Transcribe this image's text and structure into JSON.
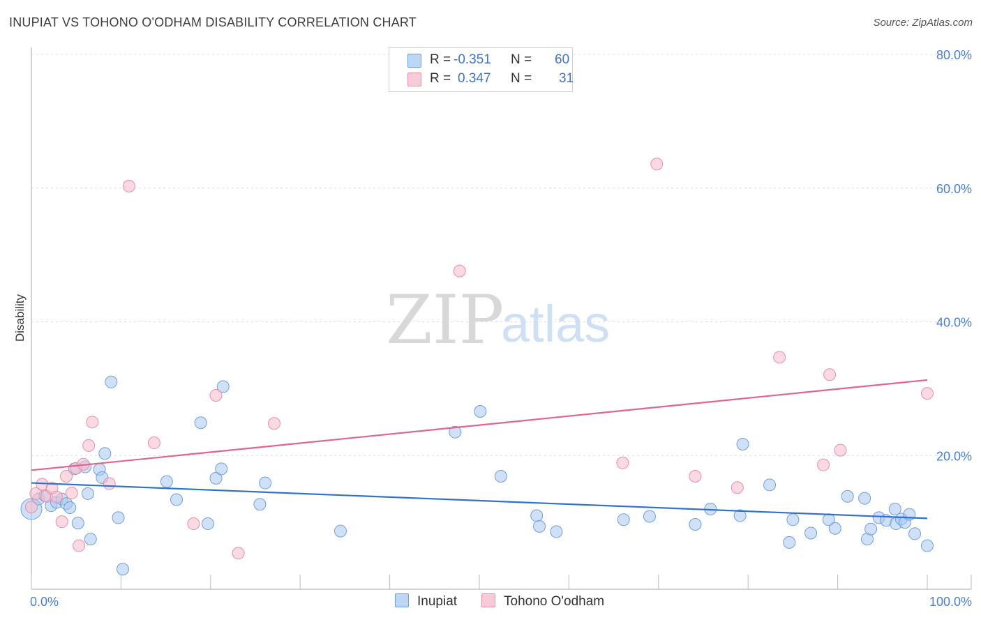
{
  "title": "INUPIAT VS TOHONO O'ODHAM DISABILITY CORRELATION CHART",
  "source": "Source: ZipAtlas.com",
  "watermark": {
    "zip": "ZIP",
    "atlas": "atlas"
  },
  "legend": {
    "r_label": "R =",
    "n_label": "N =",
    "rows": [
      {
        "name": "Inupiat",
        "r": "-0.351",
        "n": "60"
      },
      {
        "name": "Tohono O'odham",
        "r": "0.347",
        "n": "31"
      }
    ]
  },
  "colors": {
    "inupiat_fill": "#a9c8f0",
    "inupiat_stroke": "#6f9fd8",
    "inupiat_line": "#2f72cc",
    "tohono_fill": "#f6bccb",
    "tohono_stroke": "#e78fa9",
    "tohono_line": "#e0648f",
    "axis_text": "#4a7fd0",
    "grid": "#dcdcdc"
  },
  "chart_data": {
    "type": "scatter",
    "title": "INUPIAT VS TOHONO O'ODHAM DISABILITY CORRELATION CHART",
    "xlabel": "",
    "ylabel": "Disability",
    "xlim": [
      0,
      100
    ],
    "ylim": [
      0,
      80
    ],
    "x_tick_labels": [
      "0.0%",
      "100.0%"
    ],
    "y_ticks": [
      20,
      40,
      60,
      80
    ],
    "y_tick_labels": [
      "20.0%",
      "40.0%",
      "60.0%",
      "80.0%"
    ],
    "grid": true,
    "series": [
      {
        "name": "Inupiat",
        "r": -0.351,
        "n": 60,
        "trend": {
          "x": [
            0,
            100
          ],
          "y": [
            15.9,
            10.6
          ]
        },
        "points": [
          {
            "x": 0.0,
            "y": 12.0,
            "big": true
          },
          {
            "x": 0.8,
            "y": 13.5
          },
          {
            "x": 1.5,
            "y": 14.0
          },
          {
            "x": 2.2,
            "y": 12.5
          },
          {
            "x": 2.8,
            "y": 13.0
          },
          {
            "x": 3.4,
            "y": 13.5
          },
          {
            "x": 3.9,
            "y": 12.8
          },
          {
            "x": 4.3,
            "y": 12.2
          },
          {
            "x": 4.8,
            "y": 18.0
          },
          {
            "x": 5.2,
            "y": 9.9
          },
          {
            "x": 6.0,
            "y": 18.3
          },
          {
            "x": 6.3,
            "y": 14.3
          },
          {
            "x": 6.6,
            "y": 7.5
          },
          {
            "x": 7.6,
            "y": 17.9
          },
          {
            "x": 7.9,
            "y": 16.7
          },
          {
            "x": 8.2,
            "y": 20.3
          },
          {
            "x": 8.9,
            "y": 31.0
          },
          {
            "x": 9.7,
            "y": 10.7
          },
          {
            "x": 10.2,
            "y": 3.0
          },
          {
            "x": 15.1,
            "y": 16.1
          },
          {
            "x": 16.2,
            "y": 13.4
          },
          {
            "x": 18.9,
            "y": 24.9
          },
          {
            "x": 19.7,
            "y": 9.8
          },
          {
            "x": 20.6,
            "y": 16.6
          },
          {
            "x": 21.2,
            "y": 18.0
          },
          {
            "x": 21.4,
            "y": 30.3
          },
          {
            "x": 25.5,
            "y": 12.7
          },
          {
            "x": 26.1,
            "y": 15.9
          },
          {
            "x": 34.5,
            "y": 8.7
          },
          {
            "x": 47.3,
            "y": 23.5
          },
          {
            "x": 50.1,
            "y": 26.6
          },
          {
            "x": 52.4,
            "y": 16.9
          },
          {
            "x": 56.4,
            "y": 11.0
          },
          {
            "x": 56.7,
            "y": 9.4
          },
          {
            "x": 58.6,
            "y": 8.6
          },
          {
            "x": 66.1,
            "y": 10.4
          },
          {
            "x": 69.0,
            "y": 10.9
          },
          {
            "x": 74.1,
            "y": 9.7
          },
          {
            "x": 75.8,
            "y": 12.0
          },
          {
            "x": 79.1,
            "y": 11.0
          },
          {
            "x": 79.4,
            "y": 21.7
          },
          {
            "x": 82.4,
            "y": 15.6
          },
          {
            "x": 84.6,
            "y": 7.0
          },
          {
            "x": 85.0,
            "y": 10.4
          },
          {
            "x": 87.0,
            "y": 8.4
          },
          {
            "x": 89.0,
            "y": 10.4
          },
          {
            "x": 89.7,
            "y": 9.1
          },
          {
            "x": 91.1,
            "y": 13.9
          },
          {
            "x": 93.0,
            "y": 13.6
          },
          {
            "x": 93.3,
            "y": 7.5
          },
          {
            "x": 93.7,
            "y": 9.0
          },
          {
            "x": 94.6,
            "y": 10.7
          },
          {
            "x": 95.4,
            "y": 10.3
          },
          {
            "x": 96.4,
            "y": 12.0
          },
          {
            "x": 96.5,
            "y": 9.8
          },
          {
            "x": 97.1,
            "y": 10.5
          },
          {
            "x": 97.5,
            "y": 10.0
          },
          {
            "x": 98.6,
            "y": 8.3
          },
          {
            "x": 100.0,
            "y": 6.5
          },
          {
            "x": 98.0,
            "y": 11.2
          }
        ]
      },
      {
        "name": "Tohono O'odham",
        "r": 0.347,
        "n": 31,
        "trend": {
          "x": [
            0,
            100
          ],
          "y": [
            17.8,
            31.3
          ]
        },
        "points": [
          {
            "x": 0.5,
            "y": 14.3
          },
          {
            "x": 1.2,
            "y": 15.7
          },
          {
            "x": 1.7,
            "y": 13.9
          },
          {
            "x": 2.3,
            "y": 15.1
          },
          {
            "x": 2.8,
            "y": 13.8
          },
          {
            "x": 3.4,
            "y": 10.1
          },
          {
            "x": 3.9,
            "y": 16.9
          },
          {
            "x": 4.5,
            "y": 14.4
          },
          {
            "x": 5.0,
            "y": 18.1
          },
          {
            "x": 5.3,
            "y": 6.5
          },
          {
            "x": 5.8,
            "y": 18.7
          },
          {
            "x": 6.4,
            "y": 21.5
          },
          {
            "x": 6.8,
            "y": 25.0
          },
          {
            "x": 8.7,
            "y": 15.8
          },
          {
            "x": 10.9,
            "y": 60.3
          },
          {
            "x": 13.7,
            "y": 21.9
          },
          {
            "x": 18.1,
            "y": 9.8
          },
          {
            "x": 20.6,
            "y": 29.0
          },
          {
            "x": 23.1,
            "y": 5.4
          },
          {
            "x": 27.1,
            "y": 24.8
          },
          {
            "x": 47.8,
            "y": 47.6
          },
          {
            "x": 66.0,
            "y": 18.9
          },
          {
            "x": 69.8,
            "y": 63.6
          },
          {
            "x": 74.1,
            "y": 16.9
          },
          {
            "x": 78.8,
            "y": 15.2
          },
          {
            "x": 83.5,
            "y": 34.7
          },
          {
            "x": 88.4,
            "y": 18.6
          },
          {
            "x": 89.1,
            "y": 32.1
          },
          {
            "x": 90.3,
            "y": 20.8
          },
          {
            "x": 100.0,
            "y": 29.3
          },
          {
            "x": 0.0,
            "y": 12.3
          }
        ]
      }
    ]
  }
}
